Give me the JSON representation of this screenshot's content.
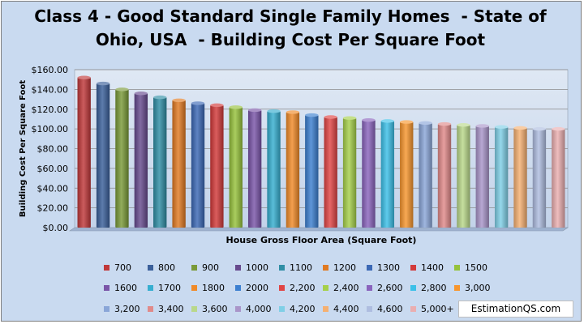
{
  "chart_data": {
    "type": "bar",
    "title_lines": [
      "Class 4 - Good Standard Single Family Homes  - State of",
      "Ohio, USA  - Building Cost Per Square Foot"
    ],
    "xlabel": "House Gross Floor Area (Square Foot)",
    "ylabel": "Building Cost Per Square Foot",
    "ylim": [
      0,
      160
    ],
    "yticks": [
      "$0.00",
      "$20.00",
      "$40.00",
      "$60.00",
      "$80.00",
      "$100.00",
      "$120.00",
      "$140.00",
      "$160.00"
    ],
    "grid": true,
    "legend_position": "bottom",
    "series": [
      {
        "name": "700",
        "value": 152,
        "color": "#c0383a"
      },
      {
        "name": "800",
        "value": 146,
        "color": "#3a5f9a"
      },
      {
        "name": "900",
        "value": 140,
        "color": "#7a9a38"
      },
      {
        "name": "1000",
        "value": 136,
        "color": "#674a8e"
      },
      {
        "name": "1100",
        "value": 132,
        "color": "#2f8ea5"
      },
      {
        "name": "1200",
        "value": 129,
        "color": "#e07a22"
      },
      {
        "name": "1300",
        "value": 126,
        "color": "#3b68b5"
      },
      {
        "name": "1400",
        "value": 124,
        "color": "#d23a3a"
      },
      {
        "name": "1500",
        "value": 122,
        "color": "#96c23c"
      },
      {
        "name": "1600",
        "value": 119,
        "color": "#7a55a8"
      },
      {
        "name": "1700",
        "value": 118,
        "color": "#36aed0"
      },
      {
        "name": "1800",
        "value": 117,
        "color": "#f08a28"
      },
      {
        "name": "2000",
        "value": 114,
        "color": "#3c7fd0"
      },
      {
        "name": "2,200",
        "value": 112,
        "color": "#e04444"
      },
      {
        "name": "2,400",
        "value": 111,
        "color": "#a6d04a"
      },
      {
        "name": "2,600",
        "value": 109,
        "color": "#8a64bd"
      },
      {
        "name": "2,800",
        "value": 108,
        "color": "#3cc0e8"
      },
      {
        "name": "3,000",
        "value": 107,
        "color": "#f7962e"
      },
      {
        "name": "3,200",
        "value": 106,
        "color": "#8aa6d8"
      },
      {
        "name": "3,400",
        "value": 105,
        "color": "#e08a8a"
      },
      {
        "name": "3,600",
        "value": 104,
        "color": "#b9d88a"
      },
      {
        "name": "4,000",
        "value": 103,
        "color": "#a995c9"
      },
      {
        "name": "4,200",
        "value": 102,
        "color": "#7fcfe6"
      },
      {
        "name": "4,400",
        "value": 101,
        "color": "#f5b071"
      },
      {
        "name": "4,600",
        "value": 100,
        "color": "#aebde0"
      },
      {
        "name": "5,000+",
        "value": 100,
        "color": "#eaaeb0"
      }
    ]
  },
  "credit": "EstimationQS.com"
}
